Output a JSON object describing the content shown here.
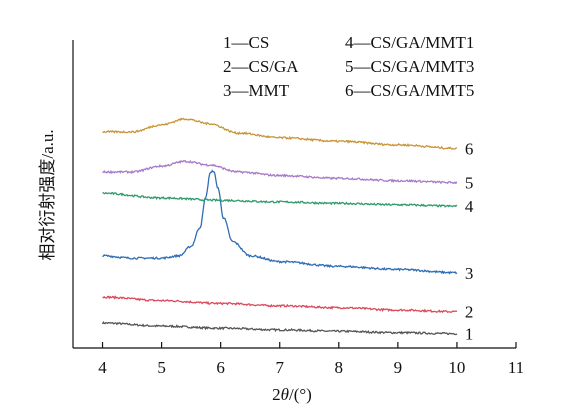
{
  "chart_data": {
    "type": "line",
    "title": "",
    "xlabel": "2θ/(°)",
    "ylabel": "相对衍射强度/a.u.",
    "xlim": [
      3.5,
      11
    ],
    "xticks": [
      "4",
      "5",
      "6",
      "7",
      "8",
      "9",
      "10",
      "11"
    ],
    "ylim": [
      0,
      10
    ],
    "grid": false,
    "legend_placement": "top-right",
    "legend": [
      {
        "id": "1",
        "text": "1—CS"
      },
      {
        "id": "2",
        "text": "2—CS/GA"
      },
      {
        "id": "3",
        "text": "3—MMT"
      },
      {
        "id": "4",
        "text": "4—CS/GA/MMT1"
      },
      {
        "id": "5",
        "text": "5—CS/GA/MMT3"
      },
      {
        "id": "6",
        "text": "6—CS/GA/MMT5"
      }
    ],
    "series": [
      {
        "label": "1",
        "color": "#555555",
        "x": [
          4,
          5,
          6,
          7,
          8,
          9,
          10
        ],
        "y": [
          0.55,
          0.42,
          0.33,
          0.26,
          0.2,
          0.14,
          0.1
        ]
      },
      {
        "label": "2",
        "color": "#d94a5a",
        "x": [
          4,
          5,
          6,
          7,
          8,
          9,
          10
        ],
        "y": [
          1.65,
          1.5,
          1.38,
          1.28,
          1.2,
          1.1,
          1.03
        ]
      },
      {
        "label": "3",
        "color": "#2f6db5",
        "x": [
          4,
          4.5,
          5,
          5.3,
          5.5,
          5.65,
          5.75,
          5.82,
          5.88,
          5.95,
          6.05,
          6.2,
          6.5,
          7,
          8,
          9,
          10
        ],
        "y": [
          3.4,
          3.3,
          3.3,
          3.4,
          3.8,
          4.6,
          5.9,
          6.9,
          7.0,
          6.3,
          5.0,
          4.0,
          3.4,
          3.15,
          2.95,
          2.82,
          2.68
        ]
      },
      {
        "label": "4",
        "color": "#2f9a6a",
        "x": [
          4,
          5,
          6,
          7,
          8,
          9,
          10
        ],
        "y": [
          6.05,
          5.85,
          5.75,
          5.68,
          5.62,
          5.56,
          5.5
        ]
      },
      {
        "label": "5",
        "color": "#a779c8",
        "x": [
          4,
          4.5,
          5,
          5.4,
          5.8,
          6.3,
          7,
          8,
          9,
          10
        ],
        "y": [
          6.95,
          6.95,
          7.2,
          7.4,
          7.25,
          6.95,
          6.8,
          6.68,
          6.58,
          6.5
        ]
      },
      {
        "label": "6",
        "color": "#c8963a",
        "x": [
          4,
          4.5,
          5,
          5.4,
          5.8,
          6.3,
          7,
          8,
          9,
          10
        ],
        "y": [
          8.65,
          8.65,
          8.95,
          9.2,
          9.0,
          8.6,
          8.4,
          8.25,
          8.1,
          7.95
        ]
      }
    ]
  }
}
